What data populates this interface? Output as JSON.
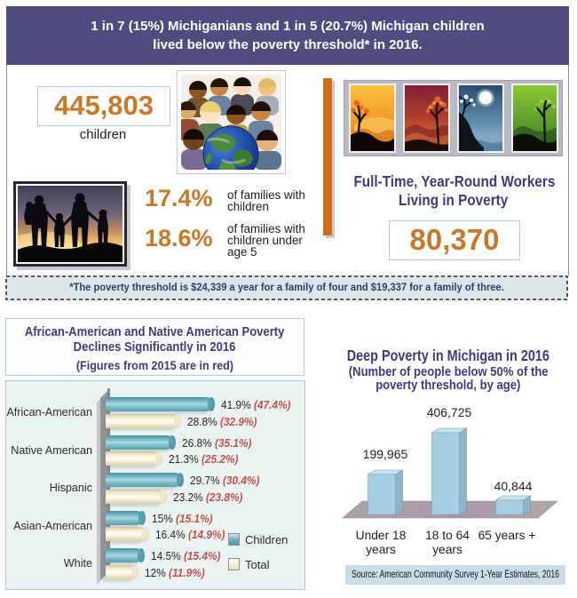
{
  "colors": {
    "purple_header": "#4f4c7f",
    "purple_text": "#3e3a7c",
    "orange": "#c8782b",
    "orange_bar": "#cf6f1e",
    "red_prev": "#c0504d",
    "navy_note": "#333a72"
  },
  "header": {
    "line1": "1 in 7 (15%) Michiganians and 1 in 5 (20.7%) Michigan children",
    "line2": "lived below the poverty threshold* in 2016."
  },
  "top_section": {
    "children_count": "445,803",
    "children_label": "children",
    "families_pct": "17.4%",
    "families_label_line1": "of families with",
    "families_label_line2": "children",
    "families_u5_pct": "18.6%",
    "families_u5_label_line1": "of families with",
    "families_u5_label_line2": "children under",
    "families_u5_label_line3": "age 5",
    "workers_title_line1": "Full-Time, Year-Round Workers",
    "workers_title_line2": "Living in Poverty",
    "workers_count": "80,370"
  },
  "note": "*The poverty threshold is $24,339 a year for a family of four and $19,337 for a family of three.",
  "chart_data": [
    {
      "type": "bar",
      "orientation": "horizontal",
      "title_line1": "African-American and Native American Poverty",
      "title_line2": "Declines Significantly in 2016",
      "title_line3": "(Figures from 2015 are in red)",
      "categories": [
        "African-American",
        "Native American",
        "Hispanic",
        "Asian-American",
        "White"
      ],
      "series": [
        {
          "name": "Children",
          "values": [
            41.9,
            26.8,
            29.7,
            15,
            14.5
          ],
          "values_2015": [
            47.4,
            35.1,
            30.4,
            15.1,
            15.4
          ]
        },
        {
          "name": "Total",
          "values": [
            28.8,
            21.3,
            23.2,
            16.4,
            12
          ],
          "values_2015": [
            32.9,
            25.2,
            23.8,
            14.9,
            11.9
          ]
        }
      ],
      "rows": [
        {
          "category": "African-American",
          "children_label": "41.9%",
          "children_prev": "(47.4%)",
          "total_label": "28.8%",
          "total_prev": "(32.9%)"
        },
        {
          "category": "Native American",
          "children_label": "26.8%",
          "children_prev": "(35.1%)",
          "total_label": "21.3%",
          "total_prev": "(25.2%)"
        },
        {
          "category": "Hispanic",
          "children_label": "29.7%",
          "children_prev": "(30.4%)",
          "total_label": "23.2%",
          "total_prev": "(23.8%)"
        },
        {
          "category": "Asian-American",
          "children_label": "15%",
          "children_prev": "(15.1%)",
          "total_label": "16.4%",
          "total_prev": "(14.9%)"
        },
        {
          "category": "White",
          "children_label": "14.5%",
          "children_prev": "(15.4%)",
          "total_label": "12%",
          "total_prev": "(11.9%)"
        }
      ],
      "legend": [
        "Children",
        "Total"
      ],
      "xlim": [
        0,
        50
      ]
    },
    {
      "type": "bar",
      "style": "3d",
      "title": "Deep Poverty in Michigan in 2016",
      "subtitle_line1": "(Number of people below 50% of the",
      "subtitle_line2": "poverty threshold, by age)",
      "categories": [
        "Under 18 years",
        "18 to 64 years",
        "65 years +"
      ],
      "tick_lines": [
        [
          "Under 18",
          "years"
        ],
        [
          "18 to 64",
          "years"
        ],
        [
          "65 years +"
        ]
      ],
      "values": [
        199965,
        406725,
        40844
      ],
      "value_labels": [
        "199,965",
        "406,725",
        "40,844"
      ],
      "source": "Source: American Community Survey 1-Year Estimates, 2016"
    }
  ]
}
